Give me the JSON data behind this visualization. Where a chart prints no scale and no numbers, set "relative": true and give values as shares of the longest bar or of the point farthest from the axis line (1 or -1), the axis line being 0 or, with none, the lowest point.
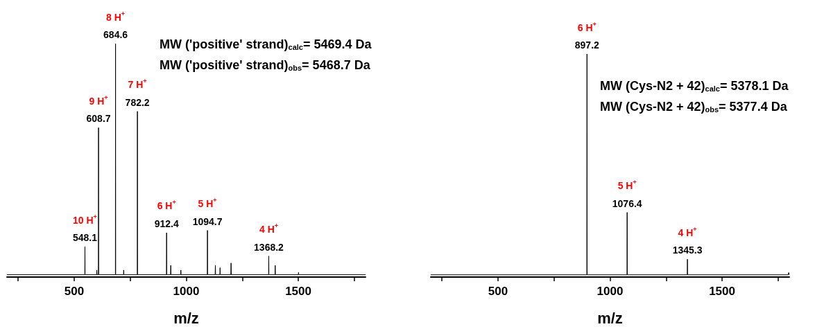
{
  "chart_data": [
    {
      "type": "line",
      "relative": true,
      "xlabel": "m/z",
      "xlim": [
        200,
        1800
      ],
      "xticks": [
        {
          "value": 250,
          "label": null
        },
        500,
        {
          "value": 750,
          "label": null
        },
        1000,
        {
          "value": 1250,
          "label": null
        },
        1500,
        {
          "value": 1750,
          "label": null
        }
      ],
      "series": [
        {
          "color": "#000000",
          "x": [
            200,
            540,
            547.5,
            548.1,
            548.7,
            600,
            601,
            602,
            608.1,
            608.7,
            609.3,
            684,
            684.6,
            685.2,
            720,
            721,
            722,
            781.6,
            782.2,
            782.8,
            911.8,
            912.4,
            913,
            930,
            931,
            932,
            975,
            976,
            977,
            1094.1,
            1094.7,
            1095.3,
            1129,
            1130,
            1131,
            1150,
            1151,
            1152,
            1199,
            1200,
            1201,
            1367.6,
            1368.2,
            1368.8,
            1396,
            1397,
            1398,
            1500,
            1501,
            1502,
            1800
          ],
          "values": [
            0.01,
            0.01,
            0.01,
            0.13,
            0.01,
            0.01,
            0.03,
            0.01,
            0.01,
            0.64,
            0.01,
            0.01,
            1,
            0.01,
            0.01,
            0.03,
            0.01,
            0.01,
            0.71,
            0.01,
            0.01,
            0.19,
            0.01,
            0.01,
            0.05,
            0.01,
            0.01,
            0.03,
            0.01,
            0.01,
            0.2,
            0.01,
            0.01,
            0.05,
            0.01,
            0.01,
            0.04,
            0.01,
            0.01,
            0.06,
            0.01,
            0.01,
            0.09,
            0.01,
            0.01,
            0.05,
            0.01,
            0.01,
            0.02,
            0.01,
            0.01
          ]
        }
      ],
      "annotations": [
        {
          "text": "10 H$^{+}$",
          "x": 548.1,
          "y": 0.13
        },
        {
          "text": "548.1",
          "x": 548.1,
          "y": 0.13
        },
        {
          "text": "9 H$^{+}$",
          "x": 608.7,
          "y": 0.64
        },
        {
          "text": "608.7",
          "x": 608.7,
          "y": 0.64
        },
        {
          "text": "8 H$^{+}$",
          "x": 684.6,
          "y": 1
        },
        {
          "text": "684.6",
          "x": 684.6,
          "y": 1
        },
        {
          "text": "7 H$^{+}$",
          "x": 782.2,
          "y": 0.71
        },
        {
          "text": "782.2",
          "x": 782.2,
          "y": 0.71
        },
        {
          "text": "6 H$^{+}$",
          "x": 912.4,
          "y": 0.19
        },
        {
          "text": "912.4",
          "x": 912.4,
          "y": 0.19
        },
        {
          "text": "5 H$^{+}$",
          "x": 1094.7,
          "y": 0.2
        },
        {
          "text": "1094.7",
          "x": 1094.7,
          "y": 0.2
        },
        {
          "text": "4 H$^{+}$",
          "x": 1368.2,
          "y": 0.09
        },
        {
          "text": "1368.2",
          "x": 1368.2,
          "y": 0.09
        },
        "MW ('positive' strand)$_{calc}$= 5469.4 Da",
        "MW ('positive' strand)$_{obs}$= 5468.7 Da"
      ]
    },
    {
      "type": "line",
      "relative": true,
      "xlabel": "m/z",
      "xlim": [
        200,
        1800
      ],
      "xticks": [
        {
          "value": 250,
          "label": null
        },
        500,
        {
          "value": 750,
          "label": null
        },
        1000,
        {
          "value": 1250,
          "label": null
        },
        1500,
        {
          "value": 1750,
          "label": null
        }
      ],
      "series": [
        {
          "color": "#000000",
          "x": [
            200,
            896.6,
            897.2,
            897.8,
            1075.8,
            1076.4,
            1077,
            1344.7,
            1345.3,
            1345.9,
            1795,
            1797,
            1800
          ],
          "values": [
            0.01,
            0.01,
            1,
            0.01,
            0.01,
            0.29,
            0.01,
            0.01,
            0.08,
            0.01,
            0.01,
            0.02,
            0.01
          ]
        }
      ],
      "annotations": [
        {
          "text": "6 H$^{+}$",
          "x": 897.2,
          "y": 1
        },
        {
          "text": "897.2",
          "x": 897.2,
          "y": 1
        },
        {
          "text": "5 H$^{+}$",
          "x": 1076.4,
          "y": 0.29
        },
        {
          "text": "1076.4",
          "x": 1076.4,
          "y": 0.29
        },
        {
          "text": "4 H$^{+}$",
          "x": 1345.3,
          "y": 0.08
        },
        {
          "text": "1345.3",
          "x": 1345.3,
          "y": 0.08
        },
        "MW (Cys-N2 + 42)$_{calc}$= 5378.1 Da",
        "MW (Cys-N2 + 42)$_{obs}$= 5377.4 Da"
      ]
    }
  ]
}
